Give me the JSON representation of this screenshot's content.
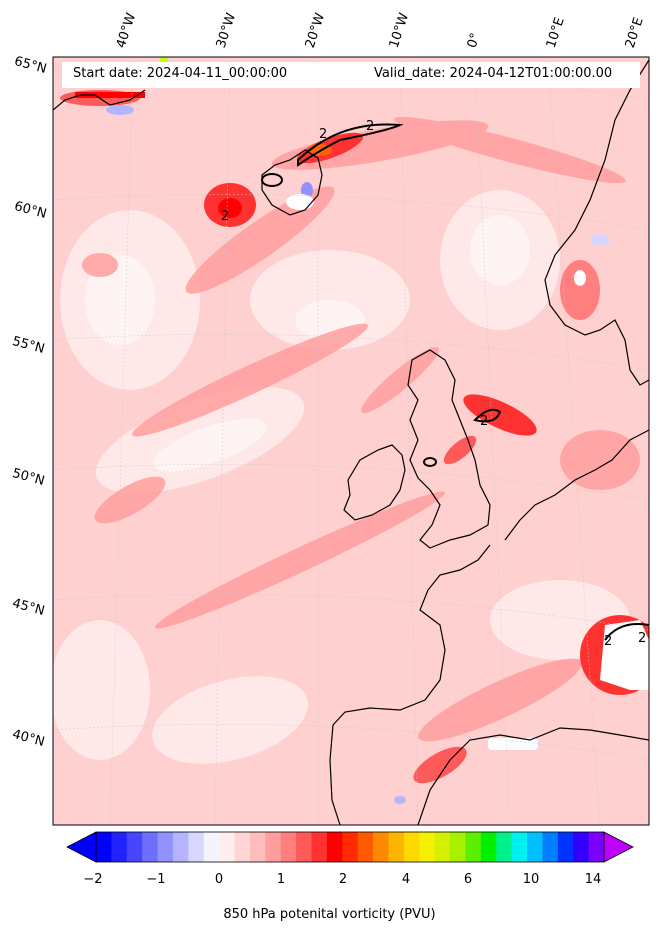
{
  "header": {
    "start_date": "Start date: 2024-04-11_00:00:00",
    "valid_date": "Valid_date: 2024-04-12T01:00:00.00"
  },
  "lon_labels": [
    "40°W",
    "30°W",
    "20°W",
    "10°W",
    "0°",
    "10°E",
    "20°E"
  ],
  "lat_labels": [
    "65°N",
    "60°N",
    "55°N",
    "50°N",
    "45°N",
    "40°N"
  ],
  "contour_label": "2",
  "colorbar": {
    "title": "850 hPa potenital vorticity (PVU)",
    "ticks": [
      "−2",
      "−1",
      "0",
      "1",
      "2",
      "4",
      "6",
      "10",
      "14"
    ],
    "colors": [
      "#0000ff",
      "#2222ff",
      "#4646ff",
      "#6e6eff",
      "#9292ff",
      "#b4b4ff",
      "#d6d6ff",
      "#f4f4ff",
      "#ffeeee",
      "#ffd6d6",
      "#ffbcbc",
      "#ff9e9e",
      "#ff7e7e",
      "#ff5a5a",
      "#ff3232",
      "#ff0000",
      "#ff2a00",
      "#ff5a00",
      "#ff8a00",
      "#ffb400",
      "#ffd800",
      "#f4f000",
      "#d2f000",
      "#a6f000",
      "#5cf000",
      "#00f000",
      "#00f08c",
      "#00f0f0",
      "#00c0ff",
      "#0080ff",
      "#0033ff",
      "#3300ff",
      "#7a00ff"
    ],
    "under_color": "#0000ff",
    "over_color": "#c000ff"
  }
}
